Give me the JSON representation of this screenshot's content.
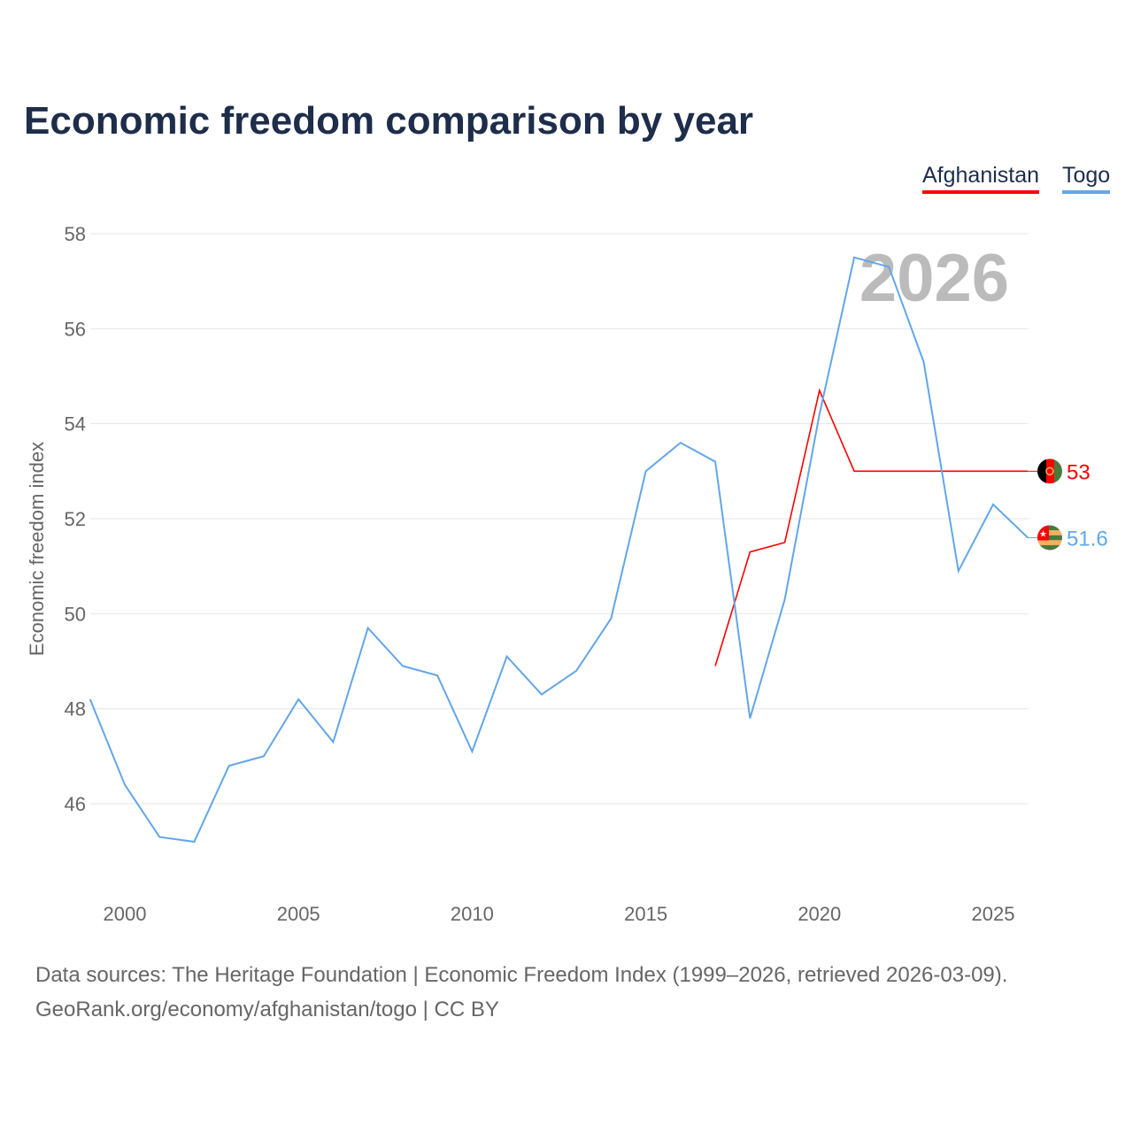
{
  "title": "Economic freedom comparison by year",
  "legend": [
    {
      "name": "Afghanistan",
      "color": "#ff0000"
    },
    {
      "name": "Togo",
      "color": "#62a6e8"
    }
  ],
  "watermark_year": "2026",
  "sources": [
    "Data sources: The Heritage Foundation | Economic Freedom Index (1999–2026, retrieved 2026-03-09).",
    "GeoRank.org/economy/afghanistan/togo | CC BY"
  ],
  "chart_data": {
    "type": "line",
    "title": "Economic freedom comparison by year",
    "xlabel": "",
    "ylabel": "Economic freedom index",
    "xlim": [
      1999,
      2026
    ],
    "ylim": [
      44,
      58
    ],
    "yticks": [
      46,
      48,
      50,
      52,
      54,
      56,
      58
    ],
    "xticks": [
      2000,
      2005,
      2010,
      2015,
      2020,
      2025
    ],
    "grid": true,
    "legend_position": "top-right",
    "series": [
      {
        "name": "Afghanistan",
        "color": "#ff0000",
        "end_label": "53",
        "x": [
          2017,
          2018,
          2019,
          2020,
          2021,
          2022,
          2023,
          2024,
          2025,
          2026
        ],
        "values": [
          48.9,
          51.3,
          51.5,
          54.7,
          53,
          53,
          53,
          53,
          53,
          53
        ]
      },
      {
        "name": "Togo",
        "color": "#62a6e8",
        "end_label": "51.6",
        "x": [
          1999,
          2000,
          2001,
          2002,
          2003,
          2004,
          2005,
          2006,
          2007,
          2008,
          2009,
          2010,
          2011,
          2012,
          2013,
          2014,
          2015,
          2016,
          2017,
          2018,
          2019,
          2020,
          2021,
          2022,
          2023,
          2024,
          2025,
          2026
        ],
        "values": [
          48.2,
          46.4,
          45.3,
          45.2,
          46.8,
          47.0,
          48.2,
          47.3,
          49.7,
          48.9,
          48.7,
          47.1,
          49.1,
          48.3,
          48.8,
          49.9,
          53.0,
          53.6,
          53.2,
          47.8,
          50.3,
          54.2,
          57.5,
          57.3,
          55.3,
          50.9,
          52.3,
          51.6
        ]
      }
    ]
  }
}
